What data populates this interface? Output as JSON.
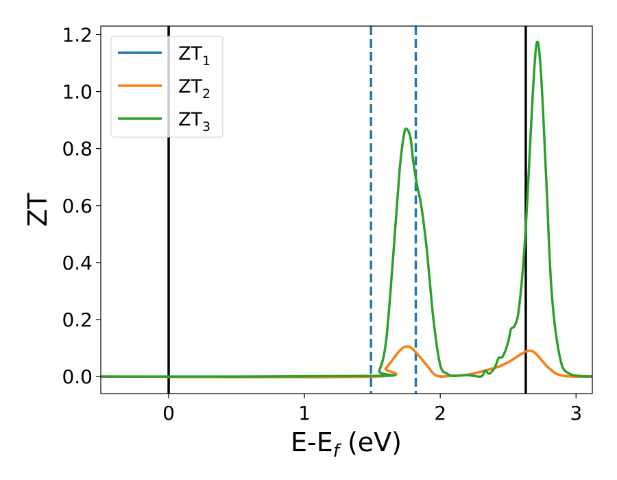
{
  "chart_data": {
    "type": "line",
    "title": "",
    "xlabel": "E-E",
    "xlabel_subscript": "f",
    "xlabel_unit": " (eV)",
    "ylabel": "ZT",
    "xlim": [
      -0.5,
      3.12
    ],
    "ylim": [
      -0.06,
      1.23
    ],
    "xticks": [
      0,
      1,
      2,
      3
    ],
    "yticks": [
      0.0,
      0.2,
      0.4,
      0.6,
      0.8,
      1.0,
      1.2
    ],
    "xtick_labels": [
      "0",
      "1",
      "2",
      "3"
    ],
    "ytick_labels": [
      "0.0",
      "0.2",
      "0.4",
      "0.6",
      "0.8",
      "1.0",
      "1.2"
    ],
    "grid": false,
    "legend_position": "top-left",
    "series": [
      {
        "name": "ZT",
        "subscript": "1",
        "color": "#1f77b4",
        "x": [
          -0.5,
          1.5,
          1.6,
          1.7,
          1.75,
          1.8,
          1.9,
          1.95,
          2.0,
          2.1,
          2.2,
          2.4,
          2.5,
          2.6,
          2.65,
          2.7,
          2.8,
          2.9,
          3.12
        ],
        "y": [
          0,
          0,
          0.03,
          0.09,
          0.105,
          0.095,
          0.04,
          0.01,
          0.0,
          0.003,
          0.006,
          0.03,
          0.05,
          0.08,
          0.09,
          0.082,
          0.03,
          0.003,
          0
        ]
      },
      {
        "name": "ZT",
        "subscript": "2",
        "color": "#ff7f0e",
        "x": [
          -0.5,
          1.5,
          1.6,
          1.7,
          1.75,
          1.8,
          1.9,
          1.95,
          2.0,
          2.1,
          2.2,
          2.4,
          2.5,
          2.6,
          2.65,
          2.7,
          2.8,
          2.9,
          3.12
        ],
        "y": [
          0,
          0,
          0.03,
          0.09,
          0.105,
          0.095,
          0.04,
          0.01,
          0.0,
          0.003,
          0.006,
          0.03,
          0.05,
          0.08,
          0.09,
          0.082,
          0.03,
          0.003,
          0
        ]
      },
      {
        "name": "ZT",
        "subscript": "3",
        "color": "#2ca02c",
        "x": [
          -0.5,
          1.5,
          1.55,
          1.6,
          1.65,
          1.7,
          1.73,
          1.75,
          1.78,
          1.8,
          1.83,
          1.86,
          1.9,
          1.95,
          2.0,
          2.05,
          2.1,
          2.2,
          2.3,
          2.33,
          2.36,
          2.4,
          2.43,
          2.46,
          2.5,
          2.52,
          2.55,
          2.58,
          2.62,
          2.65,
          2.68,
          2.71,
          2.74,
          2.78,
          2.82,
          2.88,
          2.95,
          3.12
        ],
        "y": [
          0,
          0.002,
          0.02,
          0.12,
          0.4,
          0.72,
          0.84,
          0.87,
          0.84,
          0.76,
          0.67,
          0.6,
          0.45,
          0.2,
          0.04,
          0.01,
          0.002,
          0.005,
          0.0,
          0.02,
          0.01,
          0.03,
          0.065,
          0.07,
          0.12,
          0.165,
          0.18,
          0.24,
          0.45,
          0.7,
          0.98,
          1.17,
          1.08,
          0.7,
          0.3,
          0.07,
          0.01,
          0
        ]
      }
    ],
    "vlines": [
      {
        "x": 0.0,
        "style": "solid",
        "color": "#000000"
      },
      {
        "x": 1.49,
        "style": "dashed",
        "color": "#1f77b4"
      },
      {
        "x": 1.82,
        "style": "dashed",
        "color": "#1f77b4"
      },
      {
        "x": 2.63,
        "style": "solid",
        "color": "#000000"
      }
    ]
  }
}
